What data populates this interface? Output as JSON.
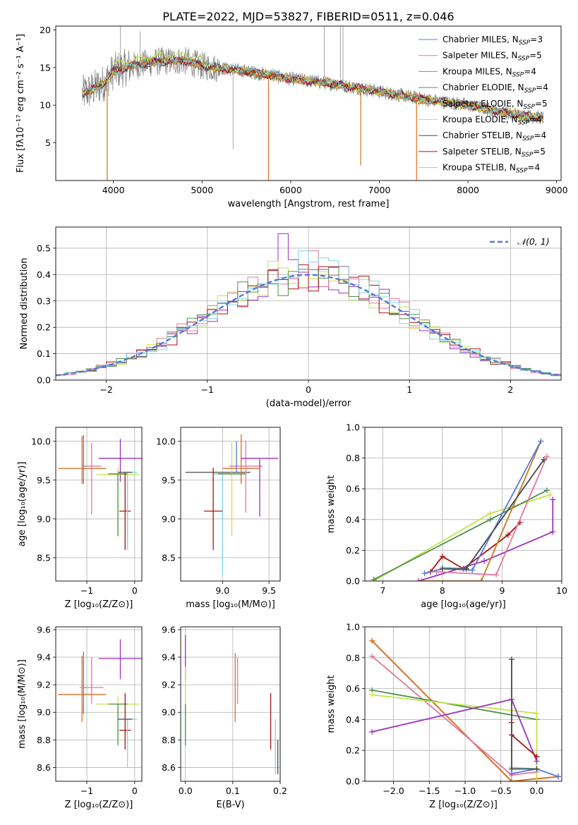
{
  "figure_title": "PLATE=2022, MJD=53827, FIBERID=0511, z=0.046",
  "colors": {
    "chabrier_miles": "#5577dd",
    "salpeter_miles": "#e377a2",
    "kroupa_miles": "#c87a1e",
    "chabrier_elodie": "#4d8f4d",
    "salpeter_elodie": "#e06d20",
    "kroupa_elodie": "#c6e24a",
    "chabrier_stelib": "#4a4a4a",
    "salpeter_stelib": "#aa1111",
    "kroupa_stelib": "#7fd3e6",
    "extra_purple": "#9b30c0",
    "data_grey": "#7f7f7f"
  },
  "chart_data": [
    {
      "id": "spectrum",
      "type": "line",
      "title": "PLATE=2022, MJD=53827, FIBERID=0511, z=0.046",
      "xlabel": "wavelength [Angstrom, rest frame]",
      "ylabel": "Flux [fλ10⁻¹⁷ erg cm⁻² s⁻¹ A⁻¹]",
      "xlim": [
        3350,
        9050
      ],
      "ylim": [
        0,
        20.5
      ],
      "xticks": [
        "4000",
        "5000",
        "6000",
        "7000",
        "8000",
        "9000"
      ],
      "yticks": [
        "5",
        "10",
        "15",
        "20"
      ],
      "legend_position": "top-right",
      "legend": [
        {
          "name": "Chabrier MILES, N",
          "sub": "SSP",
          "tail": "=3",
          "color_key": "chabrier_miles"
        },
        {
          "name": "Salpeter MILES, N",
          "sub": "SSP",
          "tail": "=5",
          "color_key": "salpeter_miles"
        },
        {
          "name": "Kroupa MILES, N",
          "sub": "SSP",
          "tail": "=4",
          "color_key": "kroupa_miles"
        },
        {
          "name": "Chabrier ELODIE, N",
          "sub": "SSP",
          "tail": "=4",
          "color_key": "chabrier_elodie"
        },
        {
          "name": "Salpeter ELODIE, N",
          "sub": "SSP",
          "tail": "=5",
          "color_key": "salpeter_elodie"
        },
        {
          "name": "Kroupa ELODIE, N",
          "sub": "SSP",
          "tail": "=4",
          "color_key": "kroupa_elodie"
        },
        {
          "name": "Chabrier STELIB, N",
          "sub": "SSP",
          "tail": "=4",
          "color_key": "chabrier_stelib"
        },
        {
          "name": "Salpeter STELIB, N",
          "sub": "SSP",
          "tail": "=5",
          "color_key": "salpeter_stelib"
        },
        {
          "name": "Kroupa STELIB, N",
          "sub": "SSP",
          "tail": "=4",
          "color_key": "kroupa_stelib"
        }
      ],
      "continuum": {
        "x": [
          3650,
          3750,
          3900,
          4000,
          4200,
          4500,
          4800,
          5000,
          5500,
          6000,
          6500,
          7000,
          7500,
          8000,
          8500,
          8850
        ],
        "y": [
          11.5,
          12.0,
          13.0,
          14.5,
          15.2,
          15.8,
          15.9,
          15.2,
          14.5,
          13.5,
          12.8,
          11.8,
          10.8,
          10.0,
          8.8,
          8.3
        ]
      },
      "grey_spikes": [
        {
          "x": 4080,
          "y": 20.5
        },
        {
          "x": 4300,
          "y": 19.8
        },
        {
          "x": 5350,
          "y": 4.2
        },
        {
          "x": 6380,
          "y": 20.5
        },
        {
          "x": 6560,
          "y": 20.5
        },
        {
          "x": 6590,
          "y": 20.5
        }
      ],
      "model_dips": [
        {
          "x": 3930,
          "y": 0,
          "color_key": "kroupa_miles"
        },
        {
          "x": 5750,
          "y": 0,
          "color_key": "salpeter_elodie"
        },
        {
          "x": 6790,
          "y": 2,
          "color_key": "kroupa_miles"
        },
        {
          "x": 7420,
          "y": 0,
          "color_key": "salpeter_elodie"
        },
        {
          "x": 8000,
          "y": 10,
          "color_key": "salpeter_elodie"
        }
      ]
    },
    {
      "id": "residuals",
      "type": "bar",
      "xlabel": "(data-model)/error",
      "ylabel": "Normed distribution",
      "xlim": [
        -2.5,
        2.5
      ],
      "ylim": [
        0,
        0.58
      ],
      "xticks": [
        "−2",
        "−1",
        "0",
        "1",
        "2"
      ],
      "yticks": [
        "0.0",
        "0.1",
        "0.2",
        "0.3",
        "0.4",
        "0.5"
      ],
      "legend_position": "top-right",
      "legend": [
        {
          "name": "𝒩(0, 1)",
          "color_key": "chabrier_miles"
        }
      ],
      "bin_width": 0.1,
      "series": [
        {
          "color_key": "extra_purple",
          "values_peak": 0.555,
          "peak_at": -0.25
        },
        {
          "color_key": "kroupa_elodie",
          "values_peak": 0.45,
          "peak_at": -0.35
        },
        {
          "color_key": "salpeter_miles",
          "values_peak": 0.49,
          "peak_at": 0.05
        },
        {
          "color_key": "salpeter_stelib",
          "values_peak": 0.43,
          "peak_at": 0.2
        },
        {
          "color_key": "chabrier_elodie",
          "values_peak": 0.42,
          "peak_at": -0.05
        },
        {
          "color_key": "kroupa_stelib",
          "values_peak": 0.49,
          "peak_at": -0.05
        }
      ]
    },
    {
      "id": "age_vs_Z",
      "type": "scatter",
      "xlabel": "Z [log₁₀(Z/Z⊙)]",
      "ylabel": "age  [log₁₀(age/yr)]",
      "xlim": [
        -1.65,
        0.15
      ],
      "ylim": [
        8.2,
        10.18
      ],
      "xticks": [
        "−1",
        "0"
      ],
      "yticks": [
        "8.5",
        "9.0",
        "9.5",
        "10.0"
      ],
      "points": [
        {
          "x": -1.1,
          "y": 9.65,
          "xerr": 0.5,
          "yerr": [
            0.2,
            0.42
          ],
          "color_key": "salpeter_elodie"
        },
        {
          "x": -0.9,
          "y": 9.68,
          "xerr": 0.2,
          "yerr": [
            0.62,
            0.3
          ],
          "color_key": "salpeter_miles"
        },
        {
          "x": -1.07,
          "y": 9.8,
          "xerr": 0.0,
          "yerr": [
            0.35,
            0.28
          ],
          "color_key": "chabrier_miles"
        },
        {
          "x": -0.3,
          "y": 9.78,
          "xerr": 0.45,
          "yerr": [
            0.3,
            0.25
          ],
          "color_key": "extra_purple"
        },
        {
          "x": -0.35,
          "y": 9.57,
          "xerr": 0.45,
          "yerr": [
            0.8,
            0.1
          ],
          "color_key": "kroupa_elodie"
        },
        {
          "x": -0.35,
          "y": 9.58,
          "xerr": 0.2,
          "yerr": [
            0.8,
            0.0
          ],
          "color_key": "chabrier_elodie"
        },
        {
          "x": -0.2,
          "y": 9.1,
          "xerr": 0.12,
          "yerr": [
            0.5,
            0.5
          ],
          "color_key": "salpeter_stelib"
        },
        {
          "x": -0.15,
          "y": 9.6,
          "xerr": 0.2,
          "yerr": [
            1.0,
            0.0
          ],
          "color_key": "kroupa_stelib"
        },
        {
          "x": -0.2,
          "y": 9.6,
          "xerr": 0.15,
          "yerr": [
            0.0,
            0.0
          ],
          "color_key": "chabrier_stelib"
        }
      ]
    },
    {
      "id": "age_vs_mass",
      "type": "scatter",
      "xlabel": "mass [log₁₀(M/M⊙)]",
      "ylabel": "",
      "xlim": [
        8.55,
        9.62
      ],
      "ylim": [
        8.2,
        10.18
      ],
      "xticks": [
        "9.0",
        "9.5"
      ],
      "yticks": [
        "8.5",
        "9.0",
        "9.5",
        "10.0"
      ],
      "points": [
        {
          "x": 8.95,
          "y": 9.6,
          "xerr": 0.35,
          "yerr": [
            0.0,
            0.0
          ],
          "color_key": "chabrier_stelib"
        },
        {
          "x": 9.1,
          "y": 9.58,
          "xerr": 0.15,
          "yerr": [
            0.8,
            0.4
          ],
          "color_key": "kroupa_elodie"
        },
        {
          "x": 9.0,
          "y": 9.58,
          "xerr": 0.1,
          "yerr": [
            1.3,
            0.0
          ],
          "color_key": "kroupa_stelib"
        },
        {
          "x": 9.2,
          "y": 9.65,
          "xerr": 0.2,
          "yerr": [
            0.2,
            0.44
          ],
          "color_key": "salpeter_elodie"
        },
        {
          "x": 9.25,
          "y": 9.68,
          "xerr": 0.18,
          "yerr": [
            0.6,
            0.33
          ],
          "color_key": "salpeter_miles"
        },
        {
          "x": 9.4,
          "y": 9.78,
          "xerr": 0.2,
          "yerr": [
            0.75,
            0.0
          ],
          "color_key": "extra_purple"
        },
        {
          "x": 8.9,
          "y": 9.1,
          "xerr": 0.1,
          "yerr": [
            0.5,
            0.56
          ],
          "color_key": "salpeter_stelib"
        },
        {
          "x": 9.1,
          "y": 9.58,
          "xerr": 0.15,
          "yerr": [
            0.0,
            0.0
          ],
          "color_key": "chabrier_elodie"
        },
        {
          "x": 9.15,
          "y": 9.8,
          "xerr": 0.0,
          "yerr": [
            0.2,
            0.2
          ],
          "color_key": "chabrier_miles"
        }
      ]
    },
    {
      "id": "mass_weight_vs_age",
      "type": "line",
      "xlabel": "age  [log₁₀(age/yr)]",
      "ylabel": "mass weight",
      "xlim": [
        6.7,
        10.0
      ],
      "ylim": [
        0,
        1.0
      ],
      "xticks": [
        "7",
        "8",
        "9",
        "10"
      ],
      "yticks": [
        "0.0",
        "0.2",
        "0.4",
        "0.6",
        "0.8",
        "1.0"
      ],
      "series": [
        {
          "color_key": "kroupa_elodie",
          "x": [
            6.85,
            8.8,
            9.8
          ],
          "y": [
            0.0,
            0.44,
            0.56
          ]
        },
        {
          "color_key": "chabrier_elodie",
          "x": [
            6.85,
            8.8,
            9.75
          ],
          "y": [
            0.01,
            0.4,
            0.59
          ]
        },
        {
          "color_key": "salpeter_stelib",
          "x": [
            7.8,
            8.0,
            8.35,
            9.1,
            9.3
          ],
          "y": [
            0.06,
            0.16,
            0.08,
            0.3,
            0.38
          ]
        },
        {
          "color_key": "extra_purple",
          "x": [
            7.6,
            8.7,
            9.85,
            9.85
          ],
          "y": [
            0.0,
            0.13,
            0.32,
            0.53
          ]
        },
        {
          "color_key": "kroupa_miles",
          "x": [
            7.65,
            8.65,
            9.65
          ],
          "y": [
            0.0,
            0.0,
            0.91
          ]
        },
        {
          "color_key": "chabrier_miles",
          "x": [
            7.7,
            8.0,
            8.5,
            9.65
          ],
          "y": [
            0.05,
            0.08,
            0.07,
            0.91
          ]
        },
        {
          "color_key": "salpeter_miles",
          "x": [
            7.9,
            8.9,
            9.75
          ],
          "y": [
            0.06,
            0.04,
            0.81
          ]
        },
        {
          "color_key": "kroupa_stelib",
          "x": [
            8.0,
            8.4,
            9.7
          ],
          "y": [
            0.09,
            0.08,
            0.79
          ]
        },
        {
          "color_key": "chabrier_stelib",
          "x": [
            8.0,
            8.4,
            9.7
          ],
          "y": [
            0.08,
            0.08,
            0.79
          ]
        }
      ]
    },
    {
      "id": "mass_vs_Z",
      "type": "scatter",
      "xlabel": "Z [log₁₀(Z/Z⊙)]",
      "ylabel": "mass [log₁₀(M/M⊙)]",
      "xlim": [
        -1.65,
        0.15
      ],
      "ylim": [
        8.5,
        9.62
      ],
      "xticks": [
        "−1",
        "0"
      ],
      "yticks": [
        "8.6",
        "8.8",
        "9.0",
        "9.2",
        "9.4",
        "9.6"
      ],
      "points": [
        {
          "x": -1.1,
          "y": 9.13,
          "xerr": 0.5,
          "yerr": [
            0.2,
            0.28
          ],
          "color_key": "salpeter_elodie"
        },
        {
          "x": -0.9,
          "y": 9.18,
          "xerr": 0.25,
          "yerr": [
            0.12,
            0.22
          ],
          "color_key": "salpeter_miles"
        },
        {
          "x": -1.07,
          "y": 9.14,
          "xerr": 0.0,
          "yerr": [
            0.15,
            0.3
          ],
          "color_key": "chabrier_miles"
        },
        {
          "x": -0.3,
          "y": 9.39,
          "xerr": 0.45,
          "yerr": [
            0.15,
            0.14
          ],
          "color_key": "extra_purple"
        },
        {
          "x": -0.35,
          "y": 9.06,
          "xerr": 0.45,
          "yerr": [
            0.25,
            0.06
          ],
          "color_key": "kroupa_elodie"
        },
        {
          "x": -0.35,
          "y": 9.06,
          "xerr": 0.2,
          "yerr": [
            0.3,
            0.0
          ],
          "color_key": "chabrier_elodie"
        },
        {
          "x": -0.2,
          "y": 8.87,
          "xerr": 0.12,
          "yerr": [
            0.14,
            0.27
          ],
          "color_key": "salpeter_stelib"
        },
        {
          "x": -0.15,
          "y": 8.95,
          "xerr": 0.2,
          "yerr": [
            0.35,
            0.0
          ],
          "color_key": "kroupa_stelib"
        },
        {
          "x": -0.2,
          "y": 8.95,
          "xerr": 0.15,
          "yerr": [
            0.0,
            0.0
          ],
          "color_key": "chabrier_stelib"
        }
      ]
    },
    {
      "id": "mass_vs_ebv",
      "type": "scatter",
      "xlabel": "E(B-V)",
      "ylabel": "",
      "xlim": [
        -0.01,
        0.2
      ],
      "ylim": [
        8.5,
        9.62
      ],
      "xticks": [
        "0.0",
        "0.1",
        "0.2"
      ],
      "yticks": [
        "8.6",
        "8.8",
        "9.0",
        "9.2",
        "9.4",
        "9.6"
      ],
      "points": [
        {
          "x": 0.0,
          "y": 9.39,
          "xerr": 0.0,
          "yerr": [
            0.15,
            0.17
          ],
          "color_key": "extra_purple"
        },
        {
          "x": 0.0,
          "y": 9.06,
          "xerr": 0.0,
          "yerr": [
            0.25,
            0.27
          ],
          "color_key": "kroupa_elodie"
        },
        {
          "x": 0.0,
          "y": 9.06,
          "xerr": 0.0,
          "yerr": [
            0.3,
            0.0
          ],
          "color_key": "chabrier_elodie"
        },
        {
          "x": 0.105,
          "y": 9.13,
          "xerr": 0.0,
          "yerr": [
            0.2,
            0.3
          ],
          "color_key": "salpeter_elodie"
        },
        {
          "x": 0.11,
          "y": 9.18,
          "xerr": 0.0,
          "yerr": [
            0.12,
            0.22
          ],
          "color_key": "salpeter_miles"
        },
        {
          "x": 0.18,
          "y": 8.87,
          "xerr": 0.0,
          "yerr": [
            0.14,
            0.27
          ],
          "color_key": "salpeter_stelib"
        },
        {
          "x": 0.19,
          "y": 8.75,
          "xerr": 0.0,
          "yerr": [
            0.2,
            0.2
          ],
          "color_key": "kroupa_stelib"
        },
        {
          "x": 0.195,
          "y": 8.7,
          "xerr": 0.0,
          "yerr": [
            0.15,
            0.1
          ],
          "color_key": "chabrier_stelib"
        }
      ]
    },
    {
      "id": "mass_weight_vs_Z",
      "type": "line",
      "xlabel": "Z [log₁₀(Z/Z⊙)]",
      "ylabel": "mass weight",
      "xlim": [
        -2.4,
        0.35
      ],
      "ylim": [
        0,
        1.0
      ],
      "xticks": [
        "−2.0",
        "−1.5",
        "−1.0",
        "−0.5",
        "0.0"
      ],
      "yticks": [
        "0.0",
        "0.2",
        "0.4",
        "0.6",
        "0.8",
        "1.0"
      ],
      "series": [
        {
          "color_key": "kroupa_miles",
          "x": [
            -2.3,
            -0.35,
            0.3
          ],
          "y": [
            0.91,
            0.0,
            0.03
          ]
        },
        {
          "color_key": "salpeter_elodie",
          "x": [
            -2.3,
            -0.35,
            0.3
          ],
          "y": [
            0.91,
            0.0,
            0.03
          ]
        },
        {
          "color_key": "salpeter_miles",
          "x": [
            -2.3,
            -0.35,
            0.0
          ],
          "y": [
            0.81,
            0.04,
            0.06
          ]
        },
        {
          "color_key": "chabrier_elodie",
          "x": [
            -2.3,
            0.0
          ],
          "y": [
            0.59,
            0.4
          ]
        },
        {
          "color_key": "kroupa_elodie",
          "x": [
            -2.3,
            0.0,
            0.0
          ],
          "y": [
            0.56,
            0.44,
            0.0
          ]
        },
        {
          "color_key": "extra_purple",
          "x": [
            -2.3,
            -0.35,
            0.0
          ],
          "y": [
            0.32,
            0.53,
            0.13
          ]
        },
        {
          "color_key": "salpeter_stelib",
          "x": [
            -0.35,
            -0.35,
            0.0
          ],
          "y": [
            0.38,
            0.3,
            0.16
          ]
        },
        {
          "color_key": "chabrier_miles",
          "x": [
            -0.35,
            0.0,
            0.3
          ],
          "y": [
            0.05,
            0.08,
            0.03
          ]
        },
        {
          "color_key": "kroupa_stelib",
          "x": [
            -0.35,
            -0.35,
            0.0
          ],
          "y": [
            0.79,
            0.09,
            0.08
          ]
        },
        {
          "color_key": "chabrier_stelib",
          "x": [
            -0.35,
            -0.35,
            0.0
          ],
          "y": [
            0.79,
            0.08,
            0.08
          ]
        }
      ]
    }
  ]
}
